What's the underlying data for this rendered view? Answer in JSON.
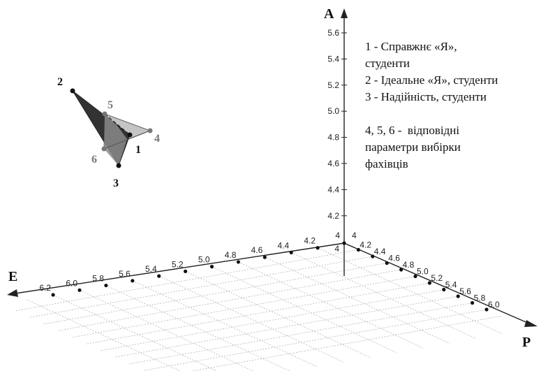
{
  "axes": {
    "vertical": {
      "name": "A",
      "ticks": [
        "5.6",
        "5.4",
        "5.2",
        "5.0",
        "4.8",
        "4.6",
        "4.4",
        "4.2",
        "4"
      ],
      "tick_values": [
        5.6,
        5.4,
        5.2,
        5.0,
        4.8,
        4.6,
        4.4,
        4.2,
        4.0
      ]
    },
    "left": {
      "name": "E",
      "ticks": [
        "4",
        "4.2",
        "4.4",
        "4.6",
        "4.8",
        "5.0",
        "5.2",
        "5.4",
        "5.6",
        "5.8",
        "6.0",
        "6.2"
      ]
    },
    "right": {
      "name": "P",
      "ticks": [
        "4",
        "4.2",
        "4.4",
        "4.6",
        "4.8",
        "5.0",
        "5.2",
        "5.4",
        "5.6",
        "5.8",
        "6.0"
      ]
    },
    "origin_label_below": "4"
  },
  "points": [
    {
      "label": "1",
      "color": "#111111"
    },
    {
      "label": "2",
      "color": "#111111"
    },
    {
      "label": "3",
      "color": "#111111"
    },
    {
      "label": "4",
      "color": "#777777"
    },
    {
      "label": "5",
      "color": "#777777"
    },
    {
      "label": "6",
      "color": "#777777"
    }
  ],
  "legend": {
    "line1": "1 - Справжнє «Я»,\nстуденти",
    "line2": "2 - Ідеальне «Я», студенти",
    "line3": "3 - Надійність, студенти",
    "line4": "4, 5, 6 -  відповідні\nпараметри вибірки\nфахівців"
  },
  "colors": {
    "dark_face": "#333333",
    "mid_face": "#8a8a8a",
    "light_face": "#c4c4c4",
    "axis": "#222222",
    "grid": "#b5b5b5"
  }
}
